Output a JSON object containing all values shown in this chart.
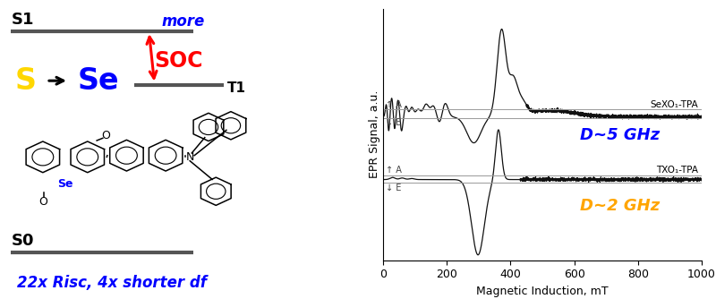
{
  "fig_width": 8.0,
  "fig_height": 3.34,
  "dpi": 100,
  "left_panel": {
    "s1_label": "S1",
    "s0_label": "S0",
    "t1_label": "T1",
    "s_color": "#FFD700",
    "se_color": "#0000FF",
    "more_color": "#0000FF",
    "soc_color": "#FF0000",
    "caption_color": "#0000FF",
    "level_color": "#555555",
    "arrow_color": "#FF0000",
    "caption": "22x Risc, 4x shorter df"
  },
  "epr_plot": {
    "xlabel": "Magnetic Induction, mT",
    "ylabel": "EPR Signal, a.u.",
    "label_sexo": "SeXO₁-TPA",
    "label_txo": "TXO₁-TPA",
    "d5_text": "D~5 GHz",
    "d2_text": "D~2 GHz",
    "d5_color": "#0000FF",
    "d2_color": "#FFA500",
    "line_color": "#111111",
    "tick_fontsize": 9,
    "axis_label_fontsize": 9
  }
}
